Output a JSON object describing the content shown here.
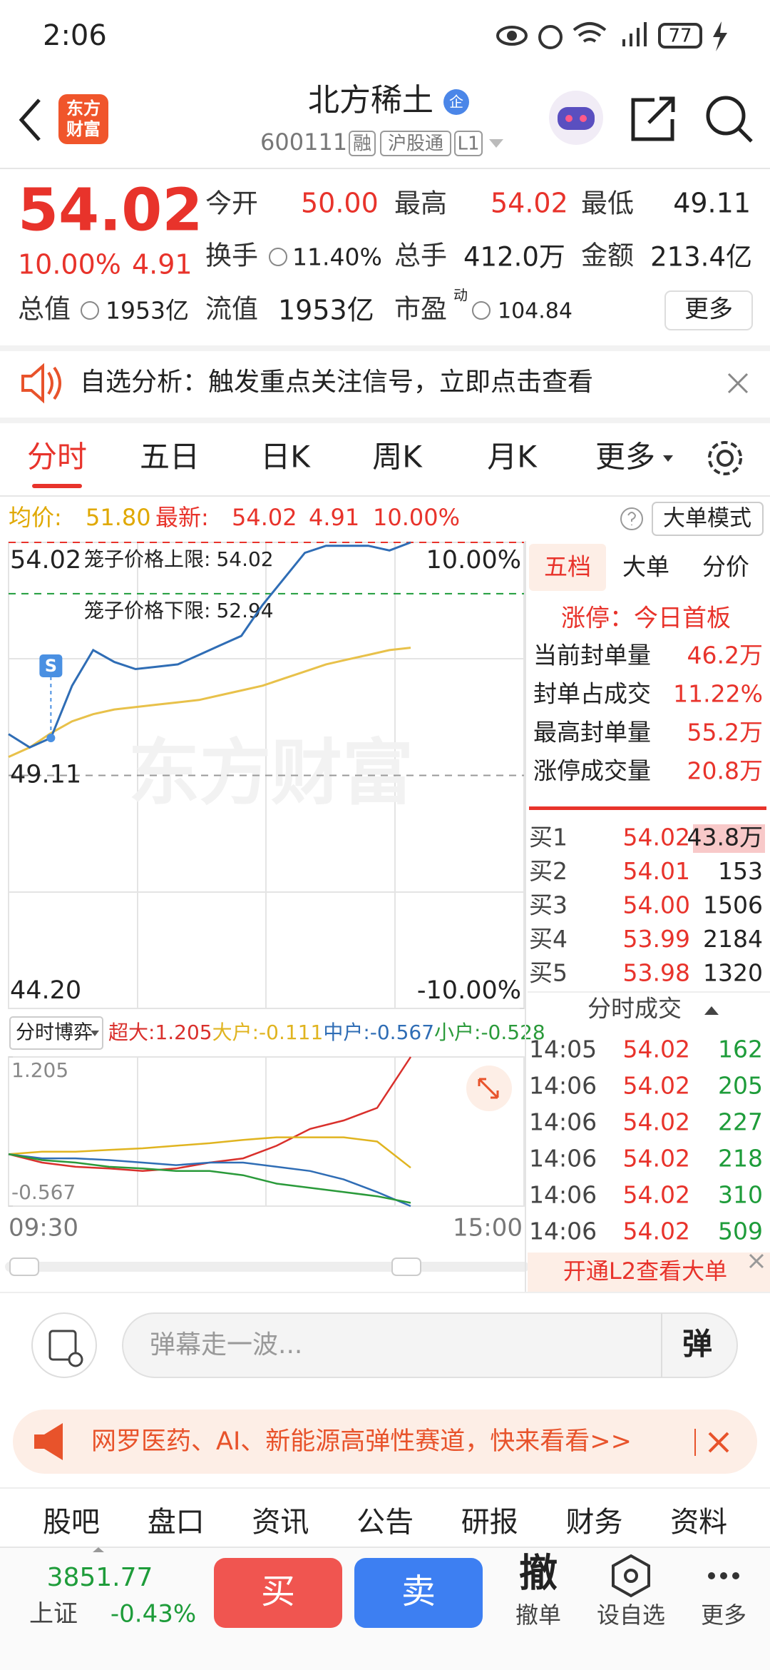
{
  "status_bar": {
    "time": "2:06",
    "battery": "77"
  },
  "header": {
    "logo": [
      "东方",
      "财富"
    ],
    "title": "北方稀土",
    "badge": "企",
    "code": "600111",
    "tags": [
      "融",
      "沪股通",
      "L1"
    ]
  },
  "quote": {
    "price": "54.02",
    "change_pct": "10.00%",
    "change": "4.91",
    "open": {
      "label": "今开",
      "value": "50.00"
    },
    "high": {
      "label": "最高",
      "value": "54.02"
    },
    "low": {
      "label": "最低",
      "value": "49.11"
    },
    "turnover": {
      "label": "换手",
      "value": "11.40%"
    },
    "volume": {
      "label": "总手",
      "value": "412.0万"
    },
    "amount": {
      "label": "金额",
      "value": "213.4亿"
    },
    "total_value": {
      "label": "总值",
      "value": "1953亿"
    },
    "float_value": {
      "label": "流值",
      "value": "1953亿"
    },
    "pe": {
      "label": "市盈",
      "sup": "动",
      "value": "104.84"
    },
    "more": "更多"
  },
  "notice": "自选分析：触发重点关注信号，立即点击查看",
  "tabs": [
    "分时",
    "五日",
    "日K",
    "周K",
    "月K",
    "更多"
  ],
  "info_row": {
    "avg_label": "均价:",
    "avg": "51.80",
    "last_label": "最新:",
    "last": "54.02",
    "change": "4.91",
    "change_pct": "10.00%",
    "mode": "大单模式"
  },
  "price_chart": {
    "type": "line",
    "watermark": "东方财富",
    "ylim": [
      44.2,
      54.02
    ],
    "yticks": [
      54.02,
      49.11,
      {
        "value": 44.2,
        "label": "44.20"
      }
    ],
    "y2lim": [
      -10,
      10
    ],
    "y2ticks": [
      {
        "value": 10,
        "label": "10.00%"
      },
      {
        "value": -10,
        "label": "-10.00%"
      }
    ],
    "cage_limits": [
      {
        "label": "笼子价格上限:",
        "value": 54.02,
        "color": "#e8332b"
      },
      {
        "label": "笼子价格下限:",
        "value": 52.94,
        "color": "#1e9c3a"
      }
    ],
    "signal": {
      "label": "S",
      "index": 2
    },
    "series": [
      {
        "name": "价格",
        "color": "#2f6db5",
        "values": [
          49.98,
          49.7,
          49.9,
          51.0,
          51.75,
          51.5,
          51.35,
          51.4,
          51.45,
          51.65,
          51.85,
          52.05,
          52.7,
          53.25,
          53.8,
          53.95,
          53.95,
          53.95,
          53.85,
          54.02
        ]
      },
      {
        "name": "均价",
        "color": "#e8c14a",
        "values": [
          49.5,
          49.7,
          50.0,
          50.25,
          50.4,
          50.5,
          50.55,
          50.6,
          50.65,
          50.7,
          50.8,
          50.9,
          51.0,
          51.15,
          51.3,
          51.45,
          51.55,
          51.65,
          51.75,
          51.8
        ]
      }
    ]
  },
  "flow_chart": {
    "type": "line",
    "title": "分时博弈",
    "ylim": [
      -0.567,
      1.205
    ],
    "yticks": [
      1.205,
      -0.567
    ],
    "series": [
      {
        "name": "超大:",
        "current": 1.205,
        "color": "#d9302c",
        "values": [
          0.05,
          -0.05,
          -0.1,
          -0.12,
          -0.15,
          -0.12,
          -0.05,
          0.0,
          0.15,
          0.35,
          0.45,
          0.6,
          1.205
        ]
      },
      {
        "name": "大户:",
        "current": -0.111,
        "color": "#e0b420",
        "values": [
          0.05,
          0.08,
          0.08,
          0.1,
          0.12,
          0.15,
          0.18,
          0.22,
          0.25,
          0.25,
          0.25,
          0.2,
          -0.111
        ]
      },
      {
        "name": "中户:",
        "current": -0.567,
        "color": "#2f6db5",
        "values": [
          0.05,
          0.0,
          0.0,
          -0.02,
          -0.05,
          -0.08,
          -0.05,
          -0.05,
          -0.1,
          -0.15,
          -0.25,
          -0.4,
          -0.567
        ]
      },
      {
        "name": "小户:",
        "current": -0.528,
        "color": "#2a9a3a",
        "values": [
          0.05,
          -0.02,
          -0.05,
          -0.1,
          -0.12,
          -0.15,
          -0.15,
          -0.2,
          -0.3,
          -0.35,
          -0.4,
          -0.45,
          -0.528
        ]
      }
    ],
    "x_labels": [
      "09:30",
      "15:00"
    ]
  },
  "side_panel": {
    "tabs": [
      "五档",
      "大单",
      "分价"
    ],
    "limit_status": "涨停：今日首板",
    "stats": [
      {
        "label": "当前封单量",
        "value": "46.2万"
      },
      {
        "label": "封单占成交",
        "value": "11.22%"
      },
      {
        "label": "最高封单量",
        "value": "55.2万"
      },
      {
        "label": "涨停成交量",
        "value": "20.8万"
      }
    ],
    "bids": [
      {
        "label": "买1",
        "price": "54.02",
        "volume": "43.8万"
      },
      {
        "label": "买2",
        "price": "54.01",
        "volume": "153"
      },
      {
        "label": "买3",
        "price": "54.00",
        "volume": "1506"
      },
      {
        "label": "买4",
        "price": "53.99",
        "volume": "2184"
      },
      {
        "label": "买5",
        "price": "53.98",
        "volume": "1320"
      }
    ],
    "trades_title": "分时成交",
    "trades": [
      {
        "time": "14:05",
        "price": "54.02",
        "volume": "162"
      },
      {
        "time": "14:06",
        "price": "54.02",
        "volume": "205"
      },
      {
        "time": "14:06",
        "price": "54.02",
        "volume": "227"
      },
      {
        "time": "14:06",
        "price": "54.02",
        "volume": "218"
      },
      {
        "time": "14:06",
        "price": "54.02",
        "volume": "310"
      },
      {
        "time": "14:06",
        "price": "54.02",
        "volume": "509"
      }
    ],
    "l2": "开通L2查看大单"
  },
  "comment": {
    "placeholder": "弹幕走一波...",
    "button": "弹"
  },
  "banner": "网罗医药、AI、新能源高弹性赛道，快来看看>>",
  "bottom_tabs": [
    "股吧",
    "盘口",
    "资讯",
    "公告",
    "研报",
    "财务",
    "资料"
  ],
  "bottom_bar": {
    "index_value": "3851.77",
    "index_name": "上证",
    "index_change": "-0.43%",
    "buy": "买",
    "sell": "卖",
    "actions": [
      {
        "icon": "撤",
        "label": "撤单"
      },
      {
        "label": "设自选"
      },
      {
        "label": "更多"
      }
    ]
  }
}
